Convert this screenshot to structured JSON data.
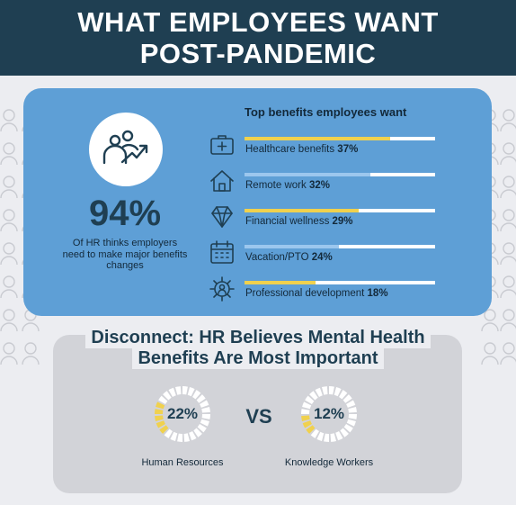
{
  "header": {
    "title_line1": "WHAT EMPLOYEES WANT",
    "title_line2": "POST-PANDEMIC"
  },
  "headline_stat": {
    "value": "94%",
    "caption": "Of HR thinks employers need to make major benefits changes",
    "icon": "people-growth-icon"
  },
  "benefits": {
    "title": "Top benefits employees want",
    "colors": {
      "fill": "#f0d14e",
      "fill_alt": "#9cc7ee",
      "track": "#ffffff"
    },
    "items": [
      {
        "label": "Healthcare benefits",
        "value_text": "37%",
        "value": 37,
        "icon": "medical-kit-icon",
        "highlight": true
      },
      {
        "label": "Remote work",
        "value_text": "32%",
        "value": 32,
        "icon": "house-icon",
        "highlight": false
      },
      {
        "label": "Financial wellness",
        "value_text": "29%",
        "value": 29,
        "icon": "diamond-icon",
        "highlight": true
      },
      {
        "label": "Vacation/PTO",
        "value_text": "24%",
        "value": 24,
        "icon": "calendar-icon",
        "highlight": false
      },
      {
        "label": "Professional development",
        "value_text": "18%",
        "value": 18,
        "icon": "gear-person-icon",
        "highlight": true
      }
    ]
  },
  "disconnect": {
    "title": "Disconnect: HR Believes Mental Health Benefits Are Most Important",
    "vs_label": "VS",
    "groups": [
      {
        "value_text": "22%",
        "value": 22,
        "label": "Human Resources"
      },
      {
        "value_text": "12%",
        "value": 12,
        "label": "Knowledge Workers"
      }
    ]
  },
  "chart_data": [
    {
      "type": "bar",
      "title": "Top benefits employees want",
      "categories": [
        "Healthcare benefits",
        "Remote work",
        "Financial wellness",
        "Vacation/PTO",
        "Professional development"
      ],
      "values": [
        37,
        32,
        29,
        24,
        18
      ],
      "unit": "%",
      "ylim": [
        0,
        100
      ]
    },
    {
      "type": "pie",
      "title": "Disconnect: HR Believes Mental Health Benefits Are Most Important",
      "categories": [
        "Human Resources",
        "Knowledge Workers"
      ],
      "values": [
        22,
        12
      ],
      "unit": "%"
    }
  ],
  "colors": {
    "header_bg": "#1f3f52",
    "panel_bg": "#5e9fd6",
    "card_bg": "#d2d3d8",
    "page_bg": "#ecedf1",
    "accent_yellow": "#f0d14e",
    "text_dark": "#1f3f52"
  }
}
